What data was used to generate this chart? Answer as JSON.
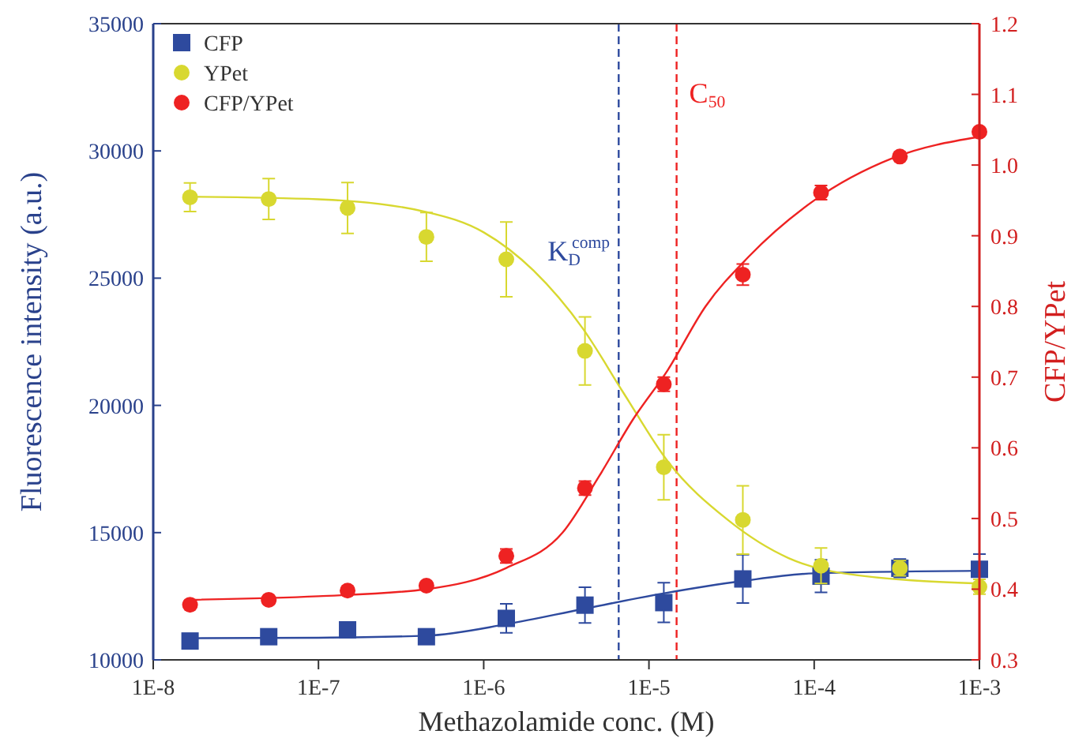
{
  "chart_data": {
    "type": "scatter",
    "xlabel": "Methazolamide conc. (M)",
    "ylabel": "Fluorescence intensity (a.u.)",
    "y2label": "CFP/YPet",
    "log": "x",
    "xlim": [
      1e-08,
      0.001
    ],
    "xticks": [
      {
        "value": 1e-08,
        "label": "1E-8"
      },
      {
        "value": 1e-07,
        "label": "1E-7"
      },
      {
        "value": 1e-06,
        "label": "1E-6"
      },
      {
        "value": 1e-05,
        "label": "1E-5"
      },
      {
        "value": 0.0001,
        "label": "1E-4"
      },
      {
        "value": 0.001,
        "label": "1E-3"
      }
    ],
    "ylim": [
      10000,
      35000
    ],
    "yticks": [
      10000,
      15000,
      20000,
      25000,
      30000,
      35000
    ],
    "y2lim": [
      0.3,
      1.2
    ],
    "y2ticks": [
      {
        "value": 0.3,
        "label": "0.3"
      },
      {
        "value": 0.4,
        "label": "0.4"
      },
      {
        "value": 0.5,
        "label": "0.5"
      },
      {
        "value": 0.6,
        "label": "0.6"
      },
      {
        "value": 0.7,
        "label": "0.7"
      },
      {
        "value": 0.8,
        "label": "0.8"
      },
      {
        "value": 0.9,
        "label": "0.9"
      },
      {
        "value": 1.0,
        "label": "1.0"
      },
      {
        "value": 1.1,
        "label": "1.1"
      },
      {
        "value": 1.2,
        "label": "1.2"
      }
    ],
    "legend": "top left",
    "grid": false,
    "series": [
      {
        "name": "CFP",
        "type": "scatter",
        "marker": "square",
        "color": "#2e4a9e",
        "x": [
          1.67e-08,
          5e-08,
          1.5e-07,
          4.5e-07,
          1.37e-06,
          4.1e-06,
          1.23e-05,
          3.7e-05,
          0.00011,
          0.00033,
          0.001
        ],
        "values": [
          10740,
          10910,
          11180,
          10910,
          11630,
          12150,
          12250,
          13180,
          13290,
          13600,
          13560
        ],
        "errors": [
          null,
          null,
          null,
          null,
          570,
          700,
          780,
          950,
          640,
          360,
          600
        ]
      },
      {
        "name": "YPet",
        "type": "scatter",
        "marker": "circle",
        "color": "#d8d830",
        "x": [
          1.67e-08,
          5e-08,
          1.5e-07,
          4.5e-07,
          1.37e-06,
          4.1e-06,
          1.23e-05,
          3.7e-05,
          0.00011,
          0.00033,
          0.001
        ],
        "values": [
          28180,
          28110,
          27760,
          26620,
          25740,
          22140,
          17570,
          15500,
          13700,
          13600,
          12870
        ],
        "errors": [
          560,
          800,
          1000,
          960,
          1470,
          1340,
          1280,
          1340,
          700,
          300,
          290
        ]
      },
      {
        "name": "CFP/YPet",
        "type": "scatter",
        "marker": "circle",
        "axis": "y2",
        "color": "#ee2222",
        "x": [
          1.67e-08,
          5e-08,
          1.5e-07,
          4.5e-07,
          1.37e-06,
          4.1e-06,
          1.23e-05,
          3.7e-05,
          0.00011,
          0.00033,
          0.001
        ],
        "values": [
          0.378,
          0.385,
          0.398,
          0.405,
          0.447,
          0.543,
          0.69,
          0.845,
          0.961,
          1.012,
          1.047
        ],
        "errors": [
          null,
          null,
          null,
          null,
          0.01,
          0.01,
          0.01,
          0.015,
          0.01,
          null,
          null
        ]
      },
      {
        "type": "line",
        "color": "#2e4a9e",
        "x": [
          1.67e-08,
          1e-07,
          4.5e-07,
          1.37e-06,
          4e-06,
          1.2e-05,
          3.7e-05,
          0.0001,
          0.001
        ],
        "values": [
          10850,
          10870,
          10950,
          11400,
          12000,
          12600,
          13100,
          13400,
          13500
        ]
      },
      {
        "type": "line",
        "color": "#d8d830",
        "x": [
          1.67e-08,
          1e-07,
          4.5e-07,
          1e-06,
          2e-06,
          4e-06,
          7e-06,
          1.3e-05,
          3e-05,
          7e-05,
          0.00015,
          0.001
        ],
        "values": [
          28200,
          28100,
          27600,
          26800,
          25300,
          23000,
          20500,
          17800,
          15500,
          14000,
          13400,
          13000
        ]
      },
      {
        "type": "line",
        "axis": "y2",
        "color": "#ee2222",
        "x": [
          1.67e-08,
          1e-07,
          4.5e-07,
          1.37e-06,
          3e-06,
          5e-06,
          8e-06,
          1.3e-05,
          2.2e-05,
          4e-05,
          0.0001,
          0.0003,
          0.001
        ],
        "values": [
          0.385,
          0.39,
          0.4,
          0.43,
          0.48,
          0.56,
          0.64,
          0.71,
          0.8,
          0.87,
          0.95,
          1.01,
          1.04
        ]
      }
    ],
    "ref_lines": [
      {
        "axis": "x",
        "value": 6.56e-06,
        "label": "K$_{D}$$^{comp}$",
        "color": "#2e4a9e",
        "line_style": "dashed"
      },
      {
        "axis": "x",
        "value": 1.47e-05,
        "label": "C$_{50}$",
        "color": "#ee2222",
        "line_style": "dashed"
      }
    ]
  }
}
